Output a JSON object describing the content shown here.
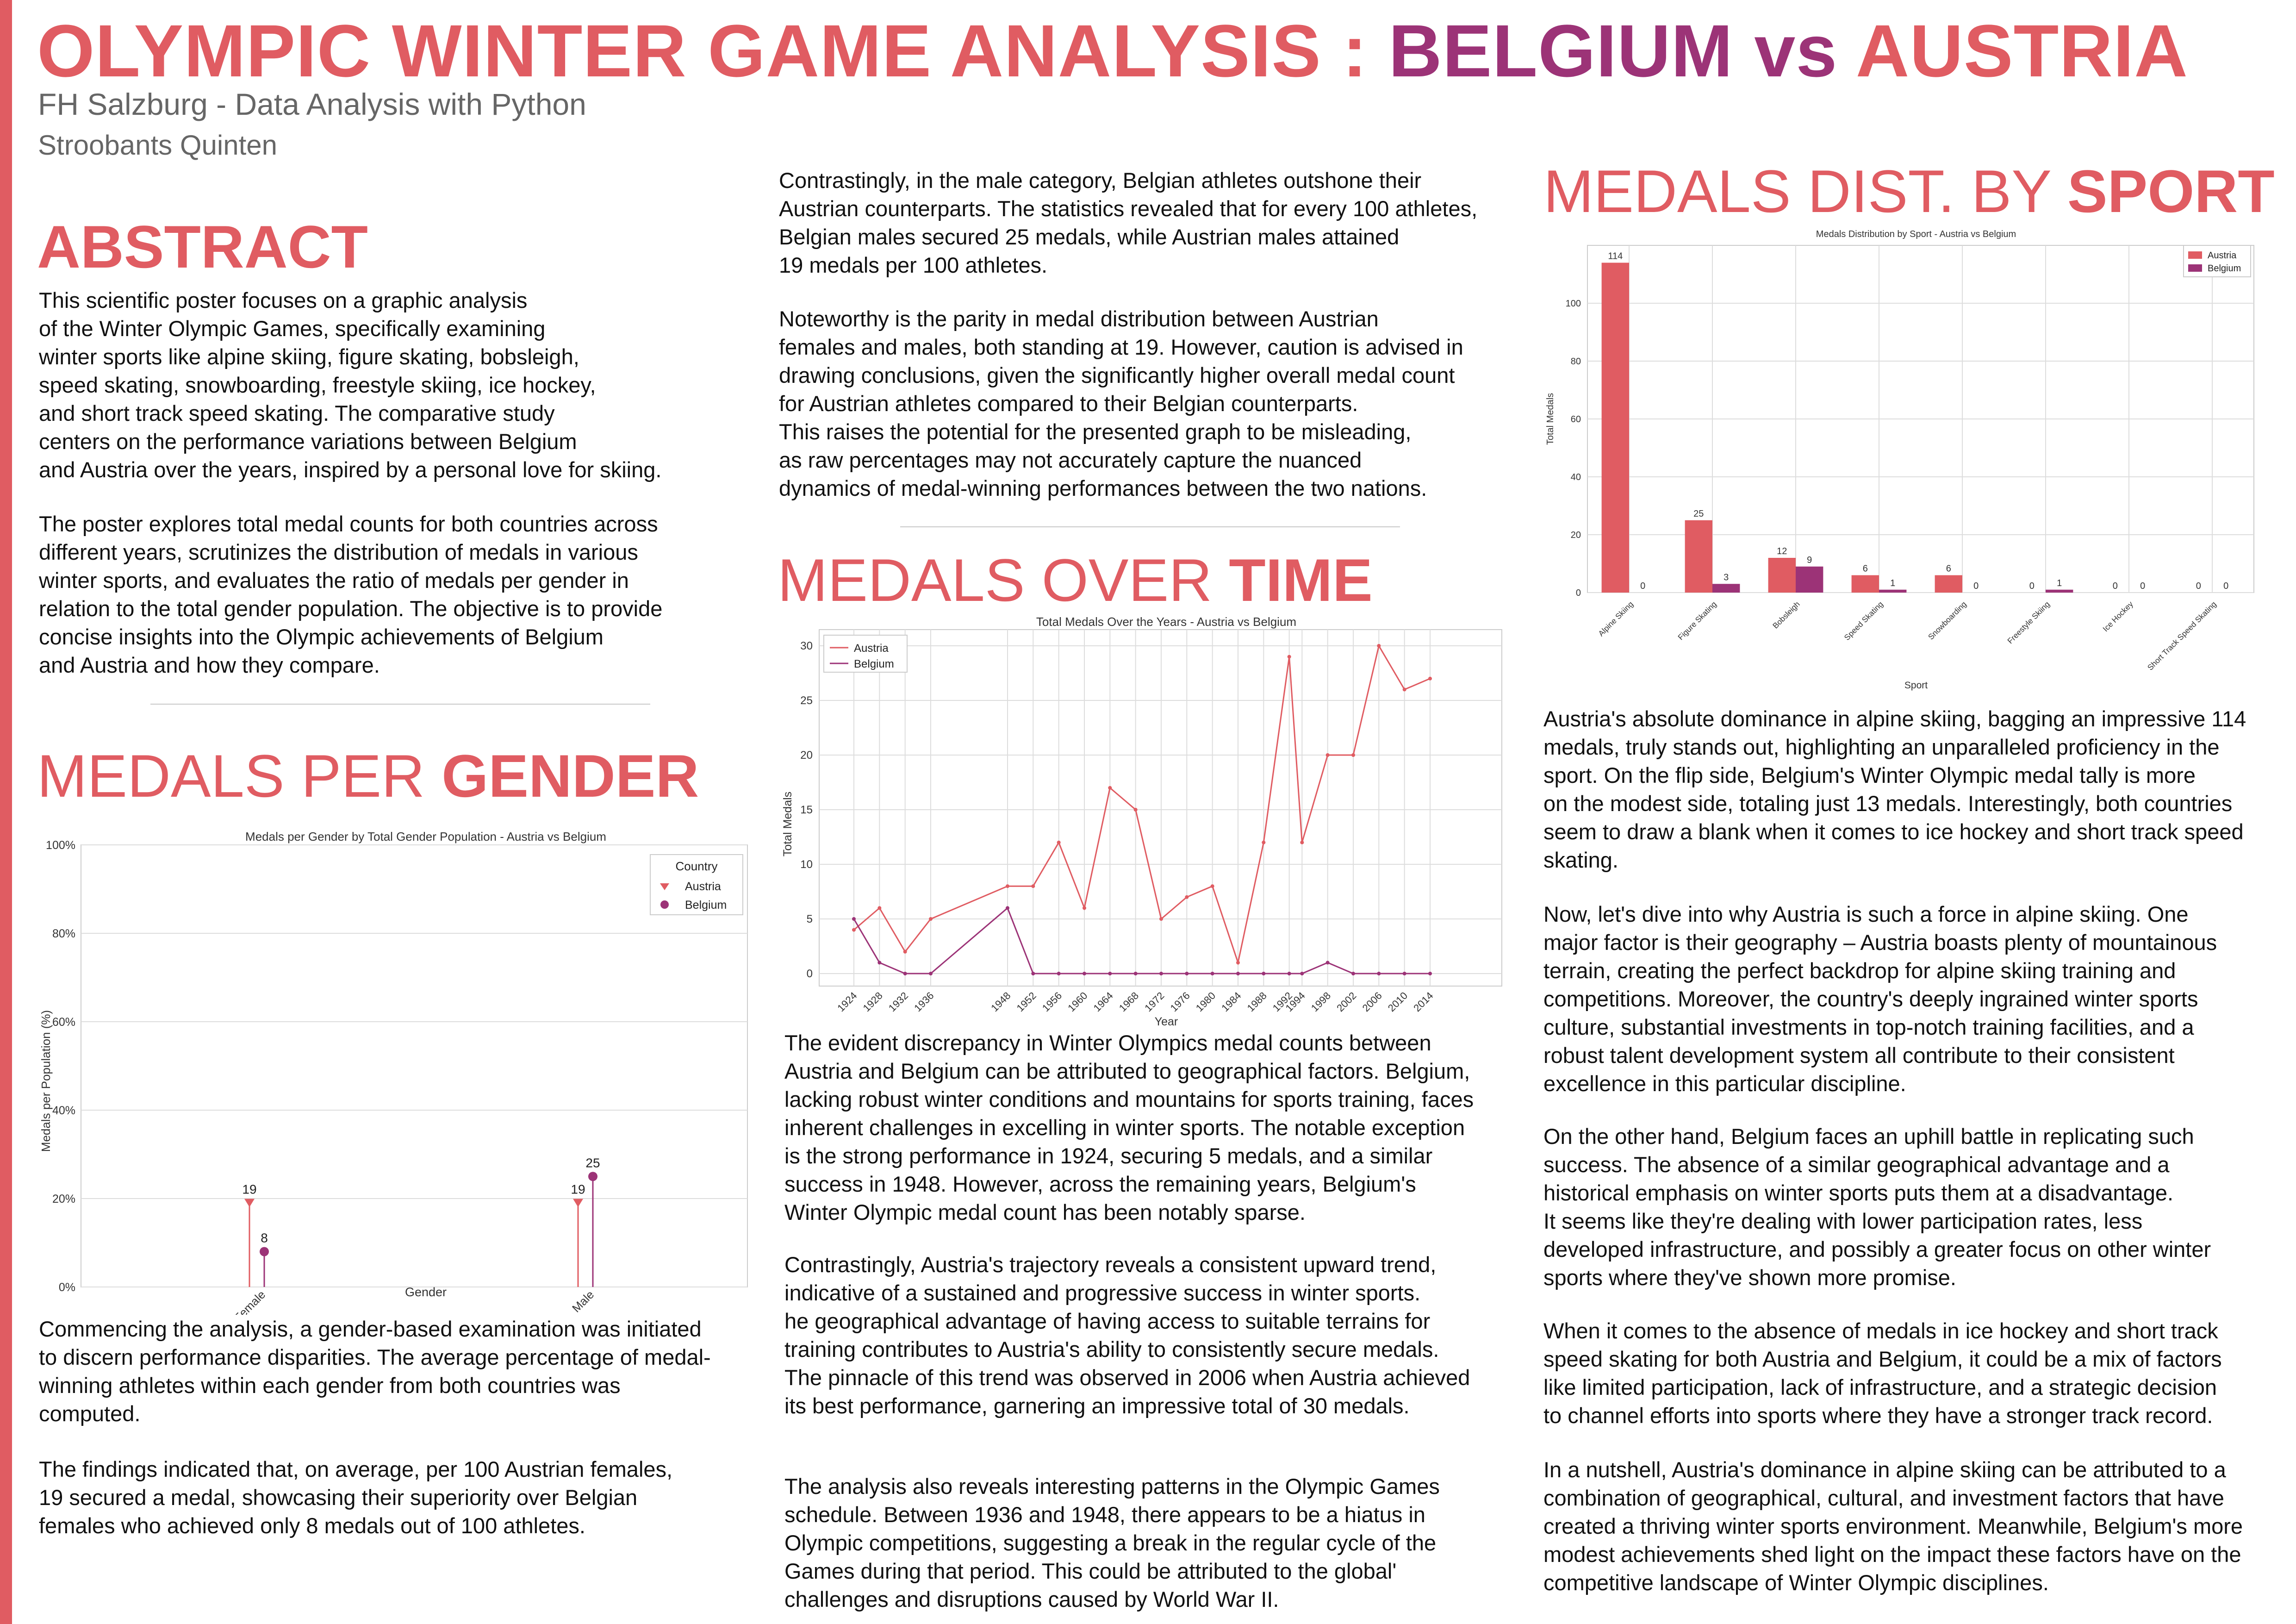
{
  "header": {
    "title_part1": "OLYMPIC WINTER GAME ANALYSIS : ",
    "title_belgium": "BELGIUM",
    "title_vs": " vs ",
    "title_austria": "AUSTRIA",
    "subtitle": "FH Salzburg - Data Analysis with Python",
    "author": "Stroobants Quinten"
  },
  "colors": {
    "accent": "#e05c62",
    "belgium": "#9c3377",
    "austria": "#e05c62",
    "subtitle": "#666666"
  },
  "abstract": {
    "heading": "ABSTRACT",
    "p1": "This scientific poster focuses on a graphic analysis\nof the Winter Olympic Games, specifically examining\nwinter sports like alpine skiing, figure skating, bobsleigh,\nspeed skating, snowboarding, freestyle skiing, ice hockey,\nand short track speed skating. The comparative study\ncenters on the performance variations between Belgium\nand Austria over the years, inspired by a personal love for skiing.",
    "p2": "The poster explores total medal counts for both countries across\ndifferent years, scrutinizes the distribution of medals in various\nwinter sports, and evaluates the ratio of medals per gender in\nrelation to the total gender population. The objective is to provide\nconcise insights into the Olympic achievements of Belgium\nand Austria and how they compare."
  },
  "gender_section": {
    "heading_regular": "MEDALS PER ",
    "heading_bold": "GENDER",
    "p1": "Commencing the analysis, a gender-based examination was initiated\nto discern performance disparities. The average percentage of medal-\nwinning athletes within each gender from both countries was\ncomputed.",
    "p2": "The findings indicated that, on average, per 100 Austrian females,\n19 secured a medal, showcasing their superiority over Belgian\nfemales who achieved only 8 medals out of 100 athletes."
  },
  "middle": {
    "p1": "Contrastingly, in the male category, Belgian athletes outshone their\nAustrian counterparts. The statistics revealed that for every 100 athletes,\nBelgian males secured 25 medals, while Austrian males attained\n19 medals per 100 athletes.",
    "p2": "Noteworthy is the parity in medal distribution between Austrian\nfemales and males, both standing at 19. However, caution is advised in\ndrawing conclusions, given the significantly higher overall medal count\nfor Austrian athletes compared to their Belgian counterparts.\nThis raises the potential for the presented graph to be misleading,\nas raw percentages may not accurately capture the nuanced\ndynamics of medal-winning performances between the two nations.",
    "time_heading_regular": "MEDALS OVER ",
    "time_heading_bold": "TIME",
    "p3": "The evident discrepancy in Winter Olympics medal counts between\nAustria and Belgium can be attributed to geographical factors. Belgium,\nlacking robust winter conditions and mountains for sports training, faces\ninherent challenges in excelling in winter sports. The notable exception\nis the strong performance in 1924, securing 5 medals, and a similar\nsuccess in 1948. However, across the remaining years, Belgium's\nWinter Olympic medal count has been notably sparse.",
    "p4": "Contrastingly, Austria's trajectory reveals a consistent upward trend,\nindicative of a sustained and progressive success in winter sports.\nhe geographical advantage of having access to suitable terrains for\ntraining contributes to Austria's ability to consistently secure medals.\nThe pinnacle of this trend was observed in 2006 when Austria achieved\nits best performance, garnering an impressive total of 30 medals.",
    "p5": "The analysis also reveals interesting patterns in the Olympic Games\nschedule. Between 1936 and 1948, there appears to be a hiatus in\nOlympic competitions, suggesting a break in the regular cycle of the\nGames during that period. This could be attributed to the global'\nchallenges and disruptions caused by World War II."
  },
  "sport_section": {
    "heading_regular": "MEDALS DIST. BY ",
    "heading_bold": "SPORT",
    "p1": "Austria's absolute dominance in alpine skiing, bagging an impressive 114\nmedals, truly stands out, highlighting an unparalleled proficiency in the\nsport. On the flip side, Belgium's Winter Olympic medal tally is more\non the modest side, totaling just 13 medals. Interestingly, both countries\nseem to draw a blank when it comes to ice hockey and short track speed\nskating.",
    "p2": "Now, let's dive into why Austria is such a force in alpine skiing. One\nmajor factor is their geography – Austria boasts plenty of mountainous\nterrain, creating the perfect backdrop for alpine skiing training and\ncompetitions. Moreover, the country's deeply ingrained winter sports\nculture, substantial investments in top-notch training facilities, and a\nrobust talent development system all contribute to their consistent\nexcellence in this particular discipline.",
    "p3": "On the other hand, Belgium faces an uphill battle in replicating such\nsuccess. The absence of a similar geographical advantage and a\nhistorical emphasis on winter sports puts them at a disadvantage.\nIt seems like they're dealing with lower participation rates, less\ndeveloped infrastructure, and possibly a greater focus on other winter\nsports where they've shown more promise.",
    "p4": "When it comes to the absence of medals in ice hockey and short track\nspeed skating for both Austria and Belgium, it could be a mix of factors\nlike limited participation, lack of infrastructure, and a strategic decision\nto channel efforts into sports where they have a stronger track record.",
    "p5": "In a nutshell, Austria's dominance in alpine skiing can be attributed to a\ncombination of geographical, cultural, and investment factors that have\ncreated a thriving winter sports environment. Meanwhile, Belgium's more\nmodest achievements shed light on the impact these factors have on the\ncompetitive landscape of Winter Olympic disciplines."
  },
  "chart_data": [
    {
      "id": "gender",
      "type": "scatter",
      "title": "Medals per Gender by Total Gender Population - Austria vs Belgium",
      "xlabel": "Gender",
      "ylabel": "Medals per Population (%)",
      "categories": [
        "Female",
        "Male"
      ],
      "ylim": [
        0,
        100
      ],
      "y_ticks": [
        "0%",
        "20%",
        "40%",
        "60%",
        "80%",
        "100%"
      ],
      "legend_title": "Country",
      "legend_position": "top-right",
      "series": [
        {
          "name": "Austria",
          "values": [
            19,
            19
          ],
          "labels": [
            "19",
            "19"
          ]
        },
        {
          "name": "Belgium",
          "values": [
            8,
            25
          ],
          "labels": [
            "8",
            "25"
          ]
        }
      ],
      "grid": true
    },
    {
      "id": "time",
      "type": "line",
      "title": "Total Medals Over the Years - Austria vs Belgium",
      "xlabel": "Year",
      "ylabel": "Total Medals",
      "x": [
        1924,
        1928,
        1932,
        1936,
        1948,
        1952,
        1956,
        1960,
        1964,
        1968,
        1972,
        1976,
        1980,
        1984,
        1988,
        1992,
        1994,
        1998,
        2002,
        2006,
        2010,
        2014
      ],
      "ylim": [
        0,
        30
      ],
      "y_ticks": [
        "0",
        "5",
        "10",
        "15",
        "20",
        "25",
        "30"
      ],
      "legend_position": "top-left",
      "series": [
        {
          "name": "Austria",
          "values": [
            4,
            6,
            2,
            5,
            8,
            8,
            12,
            6,
            17,
            15,
            5,
            7,
            8,
            1,
            12,
            29,
            12,
            20,
            20,
            30,
            26,
            27
          ]
        },
        {
          "name": "Belgium",
          "values": [
            5,
            1,
            0,
            0,
            6,
            0,
            0,
            0,
            0,
            0,
            0,
            0,
            0,
            0,
            0,
            0,
            0,
            1,
            0,
            0,
            0,
            0
          ]
        }
      ],
      "grid": true
    },
    {
      "id": "sport",
      "type": "bar",
      "title": "Medals Distribution by Sport - Austria vs Belgium",
      "xlabel": "Sport",
      "ylabel": "Total Medals",
      "categories": [
        "Alpine Skiing",
        "Figure Skating",
        "Bobsleigh",
        "Speed Skating",
        "Snowboarding",
        "Freestyle Skiing",
        "Ice Hockey",
        "Short Track Speed Skating"
      ],
      "ylim": [
        0,
        120
      ],
      "y_ticks": [
        "0",
        "20",
        "40",
        "60",
        "80",
        "100"
      ],
      "legend_position": "top-right",
      "series": [
        {
          "name": "Austria",
          "values": [
            114,
            25,
            12,
            6,
            6,
            0,
            0,
            0
          ]
        },
        {
          "name": "Belgium",
          "values": [
            0,
            3,
            9,
            1,
            0,
            1,
            0,
            0
          ]
        }
      ],
      "grid": true
    }
  ]
}
